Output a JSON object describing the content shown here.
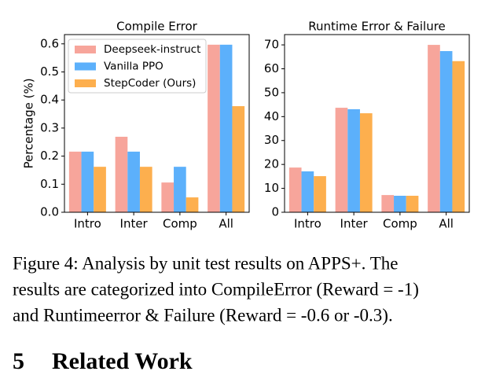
{
  "chart_data": [
    {
      "type": "bar",
      "title": "Compile Error",
      "ylabel": "Percentage (%)",
      "categories": [
        "Intro",
        "Inter",
        "Comp",
        "All"
      ],
      "series": [
        {
          "name": "Deepseek-instruct",
          "color": "#f7a59b",
          "values": [
            0.216,
            0.269,
            0.106,
            0.597
          ]
        },
        {
          "name": "Vanilla PPO",
          "color": "#5cb0fb",
          "values": [
            0.216,
            0.216,
            0.162,
            0.597
          ]
        },
        {
          "name": "StepCoder (Ours)",
          "color": "#fdaf4e",
          "values": [
            0.162,
            0.162,
            0.053,
            0.378
          ]
        }
      ],
      "ylim": [
        0,
        0.633
      ],
      "yticks": [
        {
          "value": 0,
          "label": "0.0"
        },
        0.1,
        0.2,
        0.3,
        0.4,
        0.5,
        0.6
      ],
      "legend": "upper-left"
    },
    {
      "type": "bar",
      "title": "Runtime Error & Failure",
      "categories": [
        "Intro",
        "Inter",
        "Comp",
        "All"
      ],
      "series": [
        {
          "color": "#f7a59b",
          "values": [
            18.7,
            43.7,
            7.2,
            70
          ]
        },
        {
          "color": "#5cb0fb",
          "values": [
            17.1,
            43.1,
            6.9,
            67.4
          ]
        },
        {
          "color": "#fdaf4e",
          "values": [
            15.1,
            41.4,
            6.9,
            63.2
          ]
        }
      ],
      "ylim": [
        0,
        74.3
      ],
      "yticks": [
        0,
        10,
        20,
        30,
        40,
        50,
        60,
        70
      ]
    }
  ],
  "caption_lines": [
    "Figure 4: Analysis by unit test results on APPS+. The",
    "results are categorized into CompileError (Reward = -1)",
    "and Runtimeerror & Failure (Reward = -0.6 or -0.3)."
  ],
  "section": {
    "number": "5",
    "title": "Related Work"
  }
}
